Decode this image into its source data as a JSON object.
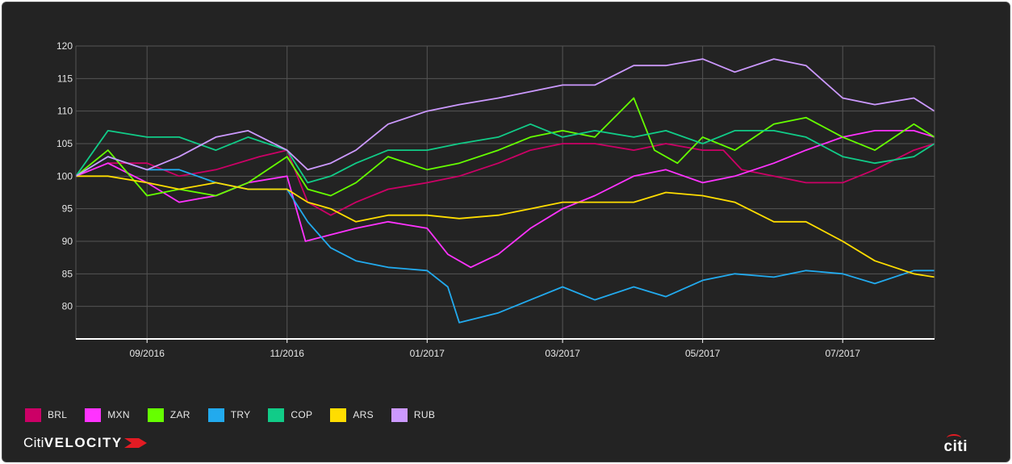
{
  "chart_data": {
    "type": "line",
    "title": "",
    "xlabel": "",
    "ylabel": "",
    "ylim": [
      75,
      120
    ],
    "yticks": [
      80,
      85,
      90,
      95,
      100,
      105,
      110,
      115,
      120
    ],
    "x_ticks": [
      "09/2016",
      "11/2016",
      "01/2017",
      "03/2017",
      "05/2017",
      "07/2017"
    ],
    "x_tick_dates": [
      "2016-09-01",
      "2016-11-01",
      "2017-01-01",
      "2017-03-01",
      "2017-05-01",
      "2017-07-01"
    ],
    "x_range": [
      "2016-08-01",
      "2017-08-10"
    ],
    "grid": true,
    "legend_position": "bottom-left",
    "series": [
      {
        "name": "BRL",
        "color": "#cc0066",
        "points": [
          [
            "2016-08-01",
            100
          ],
          [
            "2016-08-15",
            102
          ],
          [
            "2016-09-01",
            102
          ],
          [
            "2016-09-15",
            100
          ],
          [
            "2016-10-01",
            101
          ],
          [
            "2016-10-20",
            103
          ],
          [
            "2016-11-01",
            104
          ],
          [
            "2016-11-10",
            96
          ],
          [
            "2016-11-20",
            94
          ],
          [
            "2016-12-01",
            96
          ],
          [
            "2016-12-15",
            98
          ],
          [
            "2017-01-01",
            99
          ],
          [
            "2017-01-15",
            100
          ],
          [
            "2017-02-01",
            102
          ],
          [
            "2017-02-15",
            104
          ],
          [
            "2017-03-01",
            105
          ],
          [
            "2017-03-15",
            105
          ],
          [
            "2017-04-01",
            104
          ],
          [
            "2017-04-15",
            105
          ],
          [
            "2017-05-01",
            104
          ],
          [
            "2017-05-10",
            104
          ],
          [
            "2017-05-18",
            101
          ],
          [
            "2017-06-01",
            100
          ],
          [
            "2017-06-15",
            99
          ],
          [
            "2017-07-01",
            99
          ],
          [
            "2017-07-15",
            101
          ],
          [
            "2017-08-01",
            104
          ],
          [
            "2017-08-10",
            105
          ]
        ]
      },
      {
        "name": "MXN",
        "color": "#ff33ff",
        "points": [
          [
            "2016-08-01",
            100
          ],
          [
            "2016-08-15",
            102
          ],
          [
            "2016-09-01",
            99
          ],
          [
            "2016-09-15",
            96
          ],
          [
            "2016-10-01",
            97
          ],
          [
            "2016-10-15",
            99
          ],
          [
            "2016-11-01",
            100
          ],
          [
            "2016-11-09",
            90
          ],
          [
            "2016-11-20",
            91
          ],
          [
            "2016-12-01",
            92
          ],
          [
            "2016-12-15",
            93
          ],
          [
            "2017-01-01",
            92
          ],
          [
            "2017-01-10",
            88
          ],
          [
            "2017-01-20",
            86
          ],
          [
            "2017-02-01",
            88
          ],
          [
            "2017-02-15",
            92
          ],
          [
            "2017-03-01",
            95
          ],
          [
            "2017-03-15",
            97
          ],
          [
            "2017-04-01",
            100
          ],
          [
            "2017-04-15",
            101
          ],
          [
            "2017-05-01",
            99
          ],
          [
            "2017-05-15",
            100
          ],
          [
            "2017-06-01",
            102
          ],
          [
            "2017-06-15",
            104
          ],
          [
            "2017-07-01",
            106
          ],
          [
            "2017-07-15",
            107
          ],
          [
            "2017-08-01",
            107
          ],
          [
            "2017-08-10",
            106
          ]
        ]
      },
      {
        "name": "ZAR",
        "color": "#66ff00",
        "points": [
          [
            "2016-08-01",
            100
          ],
          [
            "2016-08-15",
            104
          ],
          [
            "2016-09-01",
            97
          ],
          [
            "2016-09-15",
            98
          ],
          [
            "2016-10-01",
            97
          ],
          [
            "2016-10-15",
            99
          ],
          [
            "2016-11-01",
            103
          ],
          [
            "2016-11-10",
            98
          ],
          [
            "2016-11-20",
            97
          ],
          [
            "2016-12-01",
            99
          ],
          [
            "2016-12-15",
            103
          ],
          [
            "2017-01-01",
            101
          ],
          [
            "2017-01-15",
            102
          ],
          [
            "2017-02-01",
            104
          ],
          [
            "2017-02-15",
            106
          ],
          [
            "2017-03-01",
            107
          ],
          [
            "2017-03-15",
            106
          ],
          [
            "2017-04-01",
            112
          ],
          [
            "2017-04-10",
            104
          ],
          [
            "2017-04-20",
            102
          ],
          [
            "2017-05-01",
            106
          ],
          [
            "2017-05-15",
            104
          ],
          [
            "2017-06-01",
            108
          ],
          [
            "2017-06-15",
            109
          ],
          [
            "2017-07-01",
            106
          ],
          [
            "2017-07-15",
            104
          ],
          [
            "2017-08-01",
            108
          ],
          [
            "2017-08-10",
            106
          ]
        ]
      },
      {
        "name": "TRY",
        "color": "#22aaee",
        "points": [
          [
            "2016-08-01",
            100
          ],
          [
            "2016-08-15",
            103
          ],
          [
            "2016-09-01",
            101
          ],
          [
            "2016-09-15",
            101
          ],
          [
            "2016-10-01",
            99
          ],
          [
            "2016-10-15",
            98
          ],
          [
            "2016-11-01",
            98
          ],
          [
            "2016-11-10",
            93
          ],
          [
            "2016-11-20",
            89
          ],
          [
            "2016-12-01",
            87
          ],
          [
            "2016-12-15",
            86
          ],
          [
            "2017-01-01",
            85.5
          ],
          [
            "2017-01-10",
            83
          ],
          [
            "2017-01-15",
            77.5
          ],
          [
            "2017-02-01",
            79
          ],
          [
            "2017-02-15",
            81
          ],
          [
            "2017-03-01",
            83
          ],
          [
            "2017-03-15",
            81
          ],
          [
            "2017-04-01",
            83
          ],
          [
            "2017-04-15",
            81.5
          ],
          [
            "2017-05-01",
            84
          ],
          [
            "2017-05-15",
            85
          ],
          [
            "2017-06-01",
            84.5
          ],
          [
            "2017-06-15",
            85.5
          ],
          [
            "2017-07-01",
            85
          ],
          [
            "2017-07-15",
            83.5
          ],
          [
            "2017-08-01",
            85.5
          ],
          [
            "2017-08-10",
            85.5
          ]
        ]
      },
      {
        "name": "COP",
        "color": "#11cc88",
        "points": [
          [
            "2016-08-01",
            100
          ],
          [
            "2016-08-15",
            107
          ],
          [
            "2016-09-01",
            106
          ],
          [
            "2016-09-15",
            106
          ],
          [
            "2016-10-01",
            104
          ],
          [
            "2016-10-15",
            106
          ],
          [
            "2016-11-01",
            104
          ],
          [
            "2016-11-10",
            99
          ],
          [
            "2016-11-20",
            100
          ],
          [
            "2016-12-01",
            102
          ],
          [
            "2016-12-15",
            104
          ],
          [
            "2017-01-01",
            104
          ],
          [
            "2017-01-15",
            105
          ],
          [
            "2017-02-01",
            106
          ],
          [
            "2017-02-15",
            108
          ],
          [
            "2017-03-01",
            106
          ],
          [
            "2017-03-15",
            107
          ],
          [
            "2017-04-01",
            106
          ],
          [
            "2017-04-15",
            107
          ],
          [
            "2017-05-01",
            105
          ],
          [
            "2017-05-15",
            107
          ],
          [
            "2017-06-01",
            107
          ],
          [
            "2017-06-15",
            106
          ],
          [
            "2017-07-01",
            103
          ],
          [
            "2017-07-15",
            102
          ],
          [
            "2017-08-01",
            103
          ],
          [
            "2017-08-10",
            105
          ]
        ]
      },
      {
        "name": "ARS",
        "color": "#ffdd00",
        "points": [
          [
            "2016-08-01",
            100
          ],
          [
            "2016-08-15",
            100
          ],
          [
            "2016-09-01",
            99
          ],
          [
            "2016-09-15",
            98
          ],
          [
            "2016-10-01",
            99
          ],
          [
            "2016-10-15",
            98
          ],
          [
            "2016-11-01",
            98
          ],
          [
            "2016-11-10",
            96
          ],
          [
            "2016-11-20",
            95
          ],
          [
            "2016-12-01",
            93
          ],
          [
            "2016-12-15",
            94
          ],
          [
            "2017-01-01",
            94
          ],
          [
            "2017-01-15",
            93.5
          ],
          [
            "2017-02-01",
            94
          ],
          [
            "2017-02-15",
            95
          ],
          [
            "2017-03-01",
            96
          ],
          [
            "2017-03-15",
            96
          ],
          [
            "2017-04-01",
            96
          ],
          [
            "2017-04-15",
            97.5
          ],
          [
            "2017-05-01",
            97
          ],
          [
            "2017-05-15",
            96
          ],
          [
            "2017-06-01",
            93
          ],
          [
            "2017-06-15",
            93
          ],
          [
            "2017-07-01",
            90
          ],
          [
            "2017-07-15",
            87
          ],
          [
            "2017-08-01",
            85
          ],
          [
            "2017-08-10",
            84.5
          ]
        ]
      },
      {
        "name": "RUB",
        "color": "#cc99ff",
        "points": [
          [
            "2016-08-01",
            100
          ],
          [
            "2016-08-15",
            103
          ],
          [
            "2016-09-01",
            101
          ],
          [
            "2016-09-15",
            103
          ],
          [
            "2016-10-01",
            106
          ],
          [
            "2016-10-15",
            107
          ],
          [
            "2016-11-01",
            104
          ],
          [
            "2016-11-10",
            101
          ],
          [
            "2016-11-20",
            102
          ],
          [
            "2016-12-01",
            104
          ],
          [
            "2016-12-15",
            108
          ],
          [
            "2017-01-01",
            110
          ],
          [
            "2017-01-15",
            111
          ],
          [
            "2017-02-01",
            112
          ],
          [
            "2017-02-15",
            113
          ],
          [
            "2017-03-01",
            114
          ],
          [
            "2017-03-15",
            114
          ],
          [
            "2017-04-01",
            117
          ],
          [
            "2017-04-15",
            117
          ],
          [
            "2017-05-01",
            118
          ],
          [
            "2017-05-15",
            116
          ],
          [
            "2017-06-01",
            118
          ],
          [
            "2017-06-15",
            117
          ],
          [
            "2017-07-01",
            112
          ],
          [
            "2017-07-15",
            111
          ],
          [
            "2017-08-01",
            112
          ],
          [
            "2017-08-10",
            110
          ]
        ]
      }
    ]
  },
  "legend": [
    {
      "label": "BRL",
      "color": "#cc0066"
    },
    {
      "label": "MXN",
      "color": "#ff33ff"
    },
    {
      "label": "ZAR",
      "color": "#66ff00"
    },
    {
      "label": "TRY",
      "color": "#22aaee"
    },
    {
      "label": "COP",
      "color": "#11cc88"
    },
    {
      "label": "ARS",
      "color": "#ffdd00"
    },
    {
      "label": "RUB",
      "color": "#cc99ff"
    }
  ],
  "branding": {
    "prefix": "Citi",
    "name": "VELOCITY",
    "corner_logo": "citi"
  },
  "colors": {
    "background": "#232323",
    "grid": "#555555",
    "axis": "#ffffff",
    "text": "#e6e6e6"
  }
}
